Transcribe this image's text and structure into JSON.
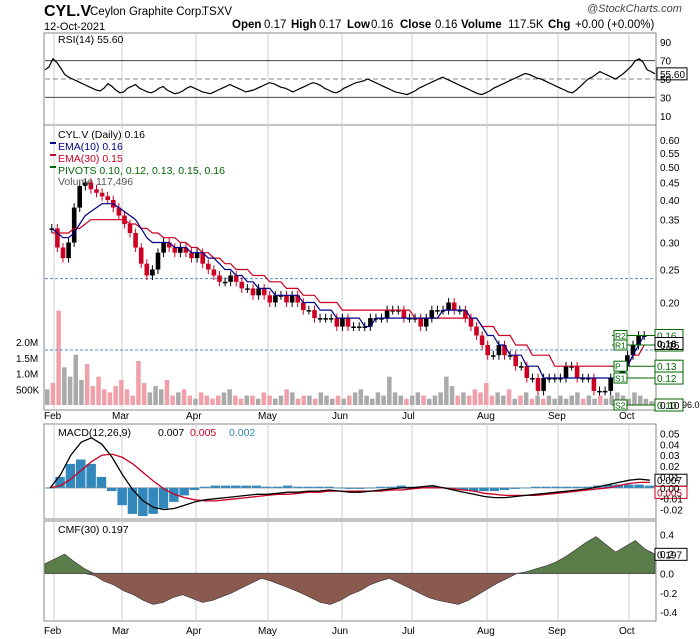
{
  "header": {
    "symbol": "CYL.V",
    "company": "Ceylon Graphite Corp.",
    "exchange": "TSXV",
    "date": "12-Oct-2021",
    "watermark": "@StockCharts.com",
    "open_label": "Open",
    "open": "0.17",
    "high_label": "High",
    "high": "0.17",
    "low_label": "Low",
    "low": "0.16",
    "close_label": "Close",
    "close": "0.16",
    "volume_label": "Volume",
    "volume": "117.5K",
    "chg_label": "Chg",
    "chg": "+0.00 (+0.00%)"
  },
  "colors": {
    "up": "#000000",
    "down": "#cc0022",
    "ema10": "#000088",
    "ema30": "#cc0022",
    "pivot": "#006600",
    "rsi": "#000000",
    "macd_hist": "#3388bb",
    "cmf_pos": "#5a7d4a",
    "cmf_neg": "#8a5a50",
    "volume_up": "#aaaaaa",
    "volume_down": "#f0a0a8"
  },
  "months": [
    "Feb",
    "Mar",
    "Apr",
    "May",
    "Jun",
    "Jul",
    "Aug",
    "Sep",
    "Oct"
  ],
  "rsi": {
    "legend": "RSI(14) 55.60",
    "ticks": [
      "90",
      "70",
      "50",
      "30",
      "10"
    ],
    "levels": [
      90,
      70,
      50,
      30,
      10
    ],
    "current": "55.60",
    "values": [
      60,
      63,
      72,
      68,
      62,
      55,
      52,
      50,
      48,
      46,
      44,
      42,
      40,
      38,
      37,
      40,
      45,
      42,
      38,
      35,
      36,
      40,
      42,
      44,
      40,
      38,
      36,
      35,
      37,
      40,
      42,
      38,
      36,
      34,
      35,
      37,
      40,
      42,
      40,
      38,
      36,
      35,
      34,
      36,
      38,
      40,
      42,
      44,
      42,
      40,
      38,
      36,
      37,
      38,
      40,
      42,
      44,
      46,
      45,
      43,
      41,
      40,
      38,
      36,
      38,
      40,
      42,
      44,
      46,
      45,
      43,
      40,
      38,
      36,
      35,
      37,
      40,
      42,
      44,
      46,
      47,
      48,
      50,
      48,
      46,
      44,
      42,
      40,
      38,
      36,
      35,
      34,
      33,
      35,
      37,
      40,
      42,
      44,
      46,
      48,
      50,
      52,
      50,
      48,
      46,
      44,
      42,
      40,
      38,
      36,
      34,
      33,
      35,
      37,
      40,
      42,
      44,
      46,
      48,
      50,
      52,
      54,
      56,
      55,
      53,
      51,
      50,
      48,
      46,
      44,
      42,
      40,
      38,
      36,
      35,
      38,
      42,
      46,
      50,
      52,
      55,
      58,
      56,
      54,
      52,
      50,
      53,
      56,
      60,
      64,
      70,
      72,
      68,
      60,
      58,
      55.6
    ]
  },
  "price": {
    "legend_symbol": "CYL.V (Daily) 0.16",
    "legend_ema10": "EMA(10) 0.16",
    "legend_ema30": "EMA(30) 0.15",
    "legend_pivots": "PIVOTS 0.10, 0.12, 0.13, 0.15, 0.16",
    "legend_volume": "Volume 117,496",
    "ticks": [
      "0.60",
      "0.55",
      "0.50",
      "0.45",
      "0.40",
      "0.35",
      "0.30",
      "0.25",
      "0.20",
      "0.15",
      "0.10"
    ],
    "tick_values": [
      0.6,
      0.55,
      0.5,
      0.45,
      0.4,
      0.35,
      0.3,
      0.25,
      0.2,
      0.15,
      0.1
    ],
    "log_scale": true,
    "ylim": [
      0.095,
      0.65
    ],
    "volume_ticks": [
      "2.0M",
      "1.5M",
      "1.0M",
      "500K"
    ],
    "volume_tick_values": [
      2000000,
      1500000,
      1000000,
      500000
    ],
    "volume_max": 3500000,
    "closes": [
      0.33,
      0.29,
      0.27,
      0.3,
      0.38,
      0.44,
      0.45,
      0.43,
      0.42,
      0.41,
      0.4,
      0.38,
      0.36,
      0.34,
      0.32,
      0.29,
      0.26,
      0.24,
      0.25,
      0.28,
      0.3,
      0.29,
      0.28,
      0.29,
      0.28,
      0.27,
      0.28,
      0.26,
      0.25,
      0.24,
      0.23,
      0.23,
      0.24,
      0.23,
      0.22,
      0.22,
      0.21,
      0.22,
      0.21,
      0.2,
      0.21,
      0.21,
      0.2,
      0.21,
      0.2,
      0.19,
      0.19,
      0.18,
      0.18,
      0.18,
      0.18,
      0.17,
      0.18,
      0.17,
      0.17,
      0.17,
      0.17,
      0.18,
      0.18,
      0.18,
      0.19,
      0.19,
      0.19,
      0.18,
      0.18,
      0.18,
      0.17,
      0.18,
      0.19,
      0.19,
      0.19,
      0.2,
      0.19,
      0.19,
      0.18,
      0.17,
      0.16,
      0.15,
      0.14,
      0.14,
      0.15,
      0.14,
      0.14,
      0.13,
      0.13,
      0.12,
      0.12,
      0.11,
      0.12,
      0.12,
      0.12,
      0.12,
      0.13,
      0.13,
      0.12,
      0.12,
      0.12,
      0.11,
      0.11,
      0.11,
      0.12,
      0.12,
      0.13,
      0.14,
      0.15,
      0.16,
      0.16
    ],
    "ema10": [
      0.33,
      0.32,
      0.31,
      0.31,
      0.32,
      0.34,
      0.36,
      0.37,
      0.38,
      0.39,
      0.39,
      0.39,
      0.38,
      0.37,
      0.36,
      0.35,
      0.33,
      0.31,
      0.3,
      0.3,
      0.3,
      0.3,
      0.29,
      0.29,
      0.29,
      0.28,
      0.28,
      0.28,
      0.27,
      0.27,
      0.26,
      0.25,
      0.25,
      0.24,
      0.24,
      0.23,
      0.23,
      0.22,
      0.22,
      0.22,
      0.21,
      0.21,
      0.21,
      0.21,
      0.21,
      0.2,
      0.2,
      0.2,
      0.19,
      0.19,
      0.19,
      0.18,
      0.18,
      0.18,
      0.18,
      0.18,
      0.17,
      0.17,
      0.18,
      0.18,
      0.18,
      0.18,
      0.18,
      0.18,
      0.18,
      0.18,
      0.18,
      0.18,
      0.18,
      0.18,
      0.19,
      0.19,
      0.19,
      0.19,
      0.19,
      0.18,
      0.18,
      0.17,
      0.16,
      0.16,
      0.15,
      0.15,
      0.14,
      0.14,
      0.14,
      0.13,
      0.13,
      0.13,
      0.12,
      0.12,
      0.12,
      0.12,
      0.12,
      0.12,
      0.12,
      0.12,
      0.12,
      0.12,
      0.12,
      0.12,
      0.12,
      0.12,
      0.12,
      0.13,
      0.14,
      0.15,
      0.16
    ],
    "ema30": [
      0.32,
      0.32,
      0.32,
      0.32,
      0.33,
      0.33,
      0.34,
      0.35,
      0.35,
      0.35,
      0.35,
      0.35,
      0.35,
      0.35,
      0.34,
      0.34,
      0.33,
      0.33,
      0.32,
      0.32,
      0.31,
      0.31,
      0.31,
      0.3,
      0.3,
      0.29,
      0.29,
      0.28,
      0.28,
      0.27,
      0.27,
      0.26,
      0.26,
      0.25,
      0.25,
      0.25,
      0.24,
      0.24,
      0.24,
      0.23,
      0.23,
      0.23,
      0.22,
      0.22,
      0.22,
      0.21,
      0.21,
      0.21,
      0.2,
      0.2,
      0.2,
      0.2,
      0.19,
      0.19,
      0.19,
      0.19,
      0.19,
      0.19,
      0.19,
      0.19,
      0.19,
      0.19,
      0.19,
      0.19,
      0.19,
      0.18,
      0.18,
      0.18,
      0.18,
      0.18,
      0.18,
      0.18,
      0.18,
      0.18,
      0.18,
      0.18,
      0.18,
      0.17,
      0.17,
      0.17,
      0.16,
      0.16,
      0.16,
      0.15,
      0.15,
      0.15,
      0.14,
      0.14,
      0.14,
      0.14,
      0.13,
      0.13,
      0.13,
      0.13,
      0.13,
      0.13,
      0.13,
      0.13,
      0.13,
      0.13,
      0.13,
      0.13,
      0.13,
      0.13,
      0.14,
      0.14,
      0.15
    ],
    "volumes": [
      500000,
      700000,
      3000000,
      1200000,
      900000,
      1600000,
      800000,
      1300000,
      600000,
      900000,
      500000,
      400000,
      600000,
      800000,
      500000,
      300000,
      1400000,
      700000,
      400000,
      600000,
      500000,
      800000,
      300000,
      400000,
      500000,
      300000,
      200000,
      400000,
      300000,
      200000,
      300000,
      400000,
      500000,
      300000,
      200000,
      300000,
      300000,
      200000,
      400000,
      300000,
      200000,
      300000,
      500000,
      400000,
      200000,
      300000,
      300000,
      200000,
      400000,
      300000,
      200000,
      300000,
      200000,
      300000,
      400000,
      500000,
      300000,
      200000,
      400000,
      300000,
      900000,
      400000,
      300000,
      200000,
      300000,
      400000,
      300000,
      200000,
      300000,
      400000,
      900000,
      600000,
      300000,
      400000,
      300000,
      500000,
      400000,
      700000,
      300000,
      400000,
      300000,
      500000,
      200000,
      300000,
      400000,
      200000,
      300000,
      200000,
      300000,
      200000,
      300000,
      200000,
      300000,
      400000,
      200000,
      300000,
      200000,
      300000,
      200000,
      300000,
      400000,
      300000,
      200000,
      400000,
      300000,
      200000,
      117496
    ],
    "pivots": {
      "current": [
        {
          "name": "R2",
          "value": 0.16,
          "label": "0.16"
        },
        {
          "name": "R1",
          "value": 0.15,
          "label": "0.15"
        },
        {
          "name": "P",
          "value": 0.13,
          "label": "0.13"
        },
        {
          "name": "S1",
          "value": 0.12,
          "label": "0.12"
        },
        {
          "name": "S2",
          "value": 0.1,
          "label": "0.10"
        }
      ],
      "last_label": "0.16",
      "volume_last_label": "96.0"
    }
  },
  "macd": {
    "legend_prefix": "MACD(12,26,9)",
    "legend_macd": "0.007",
    "legend_signal": "0.005",
    "legend_hist": "0.002",
    "ticks": [
      "0.05",
      "0.04",
      "0.03",
      "0.02",
      "0.01",
      "0.00",
      "-0.01",
      "-0.02"
    ],
    "tick_values": [
      0.05,
      0.04,
      0.03,
      0.02,
      0.01,
      0.0,
      -0.01,
      -0.02
    ],
    "ylim": [
      -0.025,
      0.055
    ],
    "current_macd": "0.007",
    "current_signal": "0.005",
    "macd_values": [
      0.0,
      0.012,
      0.03,
      0.042,
      0.046,
      0.04,
      0.028,
      0.012,
      -0.002,
      -0.012,
      -0.018,
      -0.02,
      -0.019,
      -0.016,
      -0.013,
      -0.011,
      -0.01,
      -0.009,
      -0.008,
      -0.007,
      -0.006,
      -0.006,
      -0.005,
      -0.004,
      -0.004,
      -0.003,
      -0.003,
      -0.002,
      -0.003,
      -0.004,
      -0.004,
      -0.003,
      -0.002,
      -0.001,
      0.0,
      0.0,
      0.001,
      0.002,
      0.0,
      -0.002,
      -0.004,
      -0.006,
      -0.008,
      -0.009,
      -0.009,
      -0.008,
      -0.007,
      -0.006,
      -0.005,
      -0.004,
      -0.003,
      -0.002,
      -0.001,
      0.001,
      0.003,
      0.005,
      0.007,
      0.008,
      0.007
    ],
    "signal_values": [
      0.0,
      0.002,
      0.008,
      0.016,
      0.024,
      0.03,
      0.031,
      0.028,
      0.022,
      0.014,
      0.006,
      -0.001,
      -0.006,
      -0.009,
      -0.011,
      -0.012,
      -0.012,
      -0.011,
      -0.01,
      -0.009,
      -0.008,
      -0.007,
      -0.006,
      -0.006,
      -0.005,
      -0.004,
      -0.004,
      -0.003,
      -0.003,
      -0.003,
      -0.003,
      -0.003,
      -0.003,
      -0.002,
      -0.002,
      -0.001,
      0.0,
      0.0,
      0.0,
      -0.001,
      -0.002,
      -0.003,
      -0.005,
      -0.006,
      -0.007,
      -0.007,
      -0.007,
      -0.007,
      -0.006,
      -0.005,
      -0.004,
      -0.003,
      -0.002,
      -0.001,
      0.0,
      0.002,
      0.004,
      0.005,
      0.005
    ]
  },
  "cmf": {
    "legend": "CMF(30) 0.197",
    "ticks": [
      "0.4",
      "0.2",
      "0.0",
      "-0.2",
      "-0.4"
    ],
    "tick_values": [
      0.4,
      0.2,
      0.0,
      -0.2,
      -0.4
    ],
    "ylim": [
      -0.45,
      0.5
    ],
    "current": "0.197",
    "values": [
      0.1,
      0.15,
      0.2,
      0.12,
      0.05,
      -0.02,
      -0.08,
      -0.12,
      -0.18,
      -0.22,
      -0.28,
      -0.32,
      -0.3,
      -0.25,
      -0.22,
      -0.26,
      -0.3,
      -0.28,
      -0.24,
      -0.2,
      -0.15,
      -0.1,
      -0.05,
      -0.08,
      -0.12,
      -0.16,
      -0.2,
      -0.25,
      -0.3,
      -0.32,
      -0.28,
      -0.22,
      -0.18,
      -0.12,
      -0.08,
      -0.05,
      -0.1,
      -0.15,
      -0.2,
      -0.25,
      -0.28,
      -0.3,
      -0.32,
      -0.28,
      -0.22,
      -0.16,
      -0.1,
      -0.05,
      0.0,
      0.02,
      0.05,
      0.08,
      0.12,
      0.18,
      0.25,
      0.32,
      0.38,
      0.3,
      0.22,
      0.28,
      0.34,
      0.25,
      0.2
    ]
  }
}
